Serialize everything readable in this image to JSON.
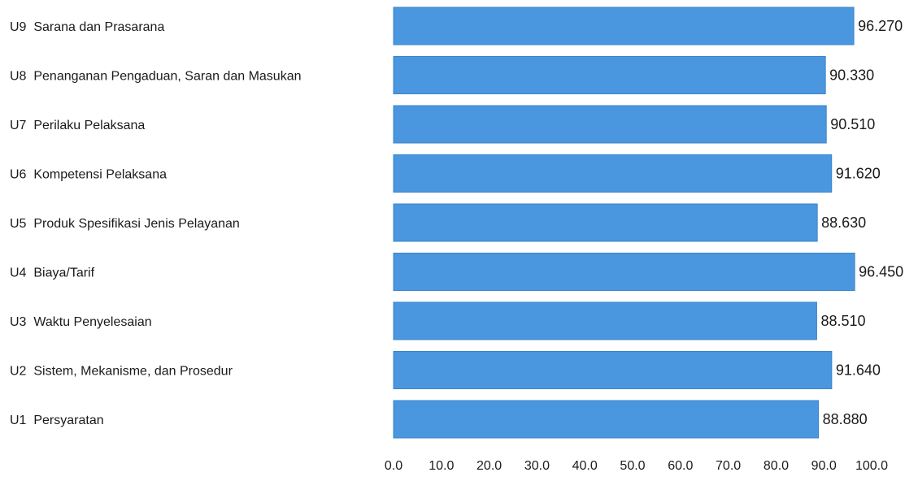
{
  "chart_data": {
    "type": "bar",
    "orientation": "horizontal",
    "categories": [
      "U9  Sarana dan Prasarana",
      "U8  Penanganan Pengaduan, Saran dan Masukan",
      "U7  Perilaku Pelaksana",
      "U6  Kompetensi Pelaksana",
      "U5  Produk Spesifikasi Jenis Pelayanan",
      "U4  Biaya/Tarif",
      "U3  Waktu Penyelesaian",
      "U2  Sistem, Mekanisme, dan Prosedur",
      "U1  Persyaratan"
    ],
    "values": [
      96.27,
      90.33,
      90.51,
      91.62,
      88.63,
      96.45,
      88.51,
      91.64,
      88.88
    ],
    "value_labels": [
      "96.270",
      "90.330",
      "90.510",
      "91.620",
      "88.630",
      "96.450",
      "88.510",
      "91.640",
      "88.880"
    ],
    "xlim": [
      0,
      100
    ],
    "x_ticks": [
      0,
      10,
      20,
      30,
      40,
      50,
      60,
      70,
      80,
      90,
      100
    ],
    "x_tick_labels": [
      "0.0",
      "10.0",
      "20.0",
      "30.0",
      "40.0",
      "50.0",
      "60.0",
      "70.0",
      "80.0",
      "90.0",
      "100.0"
    ],
    "title": "",
    "xlabel": "",
    "ylabel": "",
    "grid": false,
    "legend": "none",
    "bar_color": "#4a97df"
  }
}
